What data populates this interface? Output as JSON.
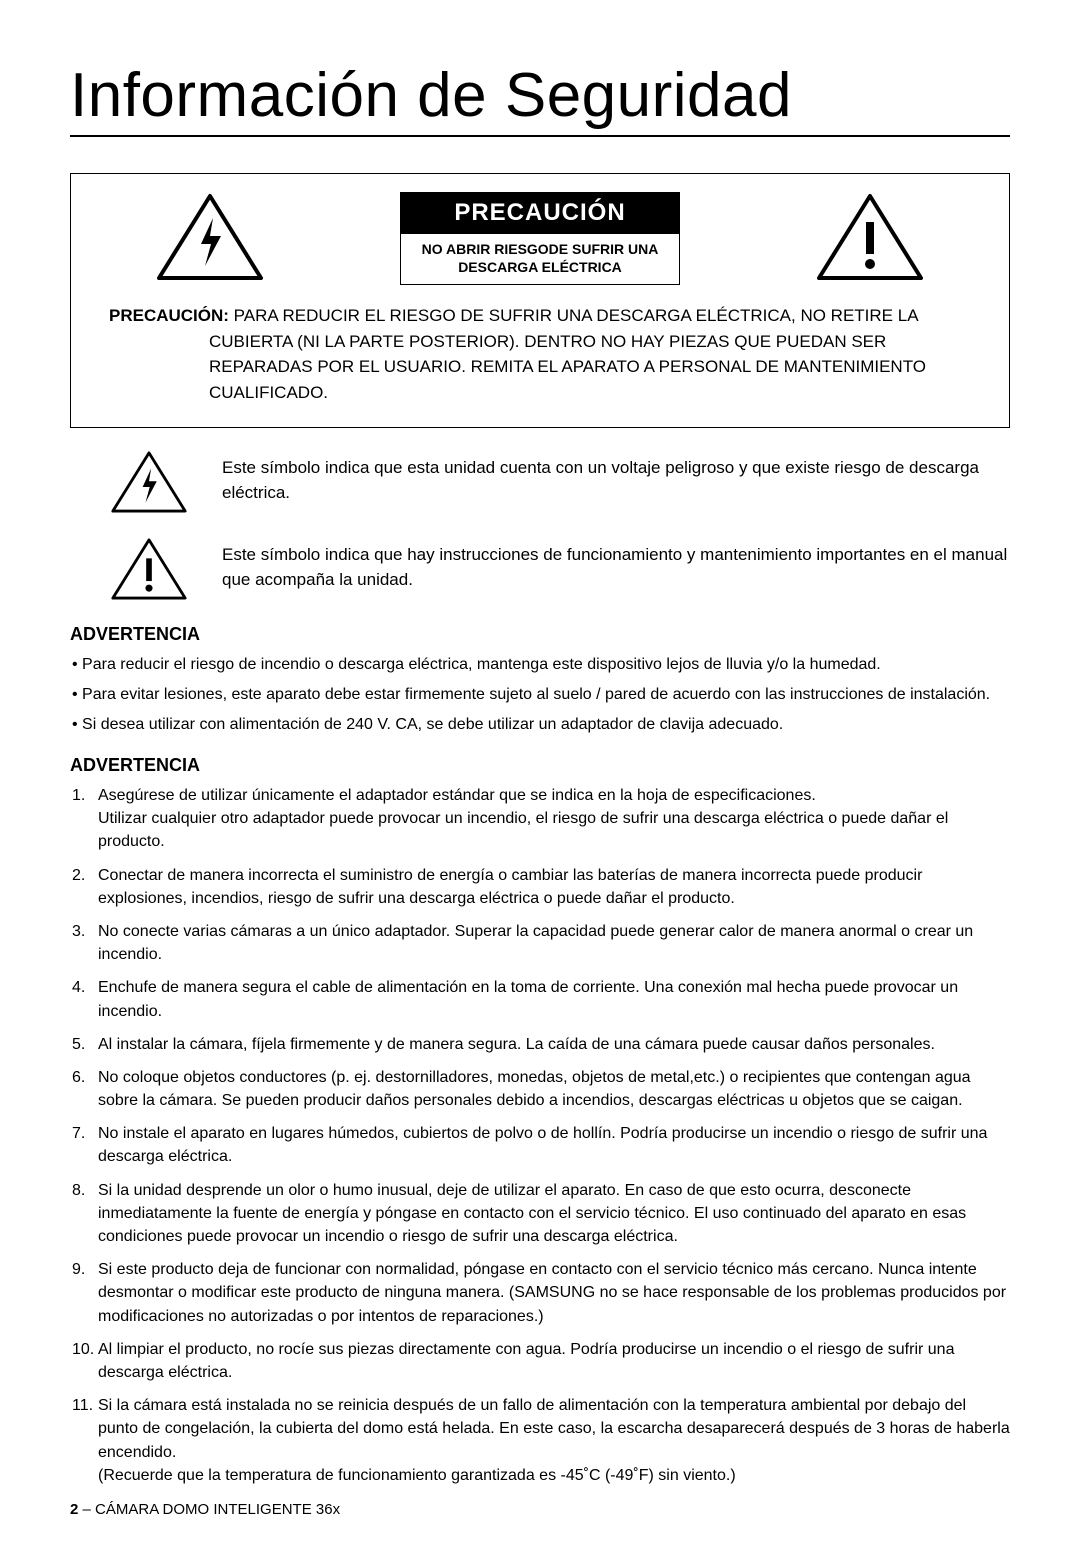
{
  "page": {
    "title": "Información de Seguridad",
    "footer_num": "2",
    "footer_text": " – CÁMARA DOMO INTELIGENTE 36x"
  },
  "colors": {
    "text": "#000000",
    "background": "#ffffff",
    "inverse_bg": "#000000",
    "inverse_text": "#ffffff"
  },
  "caution_box": {
    "header_black": "PRECAUCIÓN",
    "header_sub": "NO ABRIR RIESGODE SUFRIR UNA DESCARGA ELÉCTRICA",
    "body_label": "PRECAUCIÓN:",
    "body_text": " PARA REDUCIR EL RIESGO DE SUFRIR UNA DESCARGA ELÉCTRICA, NO RETIRE LA CUBIERTA (NI LA PARTE POSTERIOR). DENTRO NO HAY PIEZAS QUE PUEDAN SER REPARADAS POR EL USUARIO. REMITA EL APARATO A PERSONAL DE MANTENIMIENTO CUALIFICADO."
  },
  "symbol_shock": "Este símbolo indica que esta unidad cuenta con un voltaje peligroso y que existe riesgo de descarga eléctrica.",
  "symbol_warn": "Este símbolo indica que hay instrucciones de funcionamiento y mantenimiento importantes en el manual que acompaña la unidad.",
  "adv1": {
    "heading": "ADVERTENCIA",
    "items": [
      "Para reducir el riesgo de incendio o descarga eléctrica, mantenga este dispositivo lejos de lluvia y/o la humedad.",
      "Para evitar lesiones, este aparato debe estar firmemente sujeto al suelo / pared de acuerdo con las instrucciones de instalación.",
      "Si desea utilizar con alimentación de 240 V. CA, se debe utilizar un adaptador de clavija adecuado."
    ]
  },
  "adv2": {
    "heading": "ADVERTENCIA",
    "items": [
      {
        "n": "1.",
        "t": "Asegúrese de utilizar únicamente el adaptador estándar que se indica en la hoja de especificaciones.\nUtilizar cualquier otro adaptador puede provocar un incendio, el riesgo de sufrir una descarga eléctrica o puede dañar el producto."
      },
      {
        "n": "2.",
        "t": "Conectar de manera incorrecta el suministro de energía o cambiar las baterías de manera incorrecta puede producir explosiones, incendios, riesgo de sufrir una descarga eléctrica o puede dañar el producto."
      },
      {
        "n": "3.",
        "t": "No conecte varias cámaras a un único adaptador. Superar la capacidad puede generar calor de manera anormal o crear un incendio."
      },
      {
        "n": "4.",
        "t": "Enchufe de manera segura el cable de alimentación en la toma de corriente. Una conexión mal hecha puede provocar un incendio."
      },
      {
        "n": "5.",
        "t": "Al instalar la cámara, fíjela firmemente y de manera segura. La caída de una cámara puede causar daños personales."
      },
      {
        "n": "6.",
        "t": "No coloque objetos conductores (p. ej. destornilladores, monedas, objetos de metal,etc.) o recipientes que contengan agua sobre la cámara. Se pueden producir daños personales debido a incendios, descargas eléctricas u objetos que se caigan."
      },
      {
        "n": "7.",
        "t": "No instale el aparato en lugares húmedos, cubiertos de polvo o de hollín. Podría producirse un incendio o riesgo de sufrir una descarga eléctrica."
      },
      {
        "n": "8.",
        "t": "Si la unidad desprende un olor o humo inusual, deje de utilizar el aparato. En caso de que esto ocurra, desconecte inmediatamente la fuente de energía y póngase en contacto con el servicio técnico. El uso continuado del aparato en esas condiciones puede provocar un incendio o riesgo de sufrir una descarga eléctrica."
      },
      {
        "n": "9.",
        "t": "Si este producto deja de funcionar con normalidad, póngase en contacto con el servicio técnico más cercano. Nunca intente desmontar o modificar este producto de ninguna manera. (SAMSUNG no se hace responsable de los problemas producidos por modificaciones no autorizadas o por intentos de reparaciones.)"
      },
      {
        "n": "10.",
        "t": "Al limpiar el producto, no rocíe sus piezas directamente con agua. Podría producirse un incendio o el riesgo de sufrir una descarga eléctrica."
      },
      {
        "n": "11.",
        "t": "Si la cámara está instalada no se reinicia después de un fallo de alimentación con la temperatura ambiental por debajo del punto de congelación, la cubierta del domo está helada. En este caso, la escarcha desaparecerá después de 3 horas de haberla encendido.\n(Recuerde que la temperatura de funcionamiento garantizada es -45˚C (-49˚F) sin viento.)"
      }
    ]
  }
}
